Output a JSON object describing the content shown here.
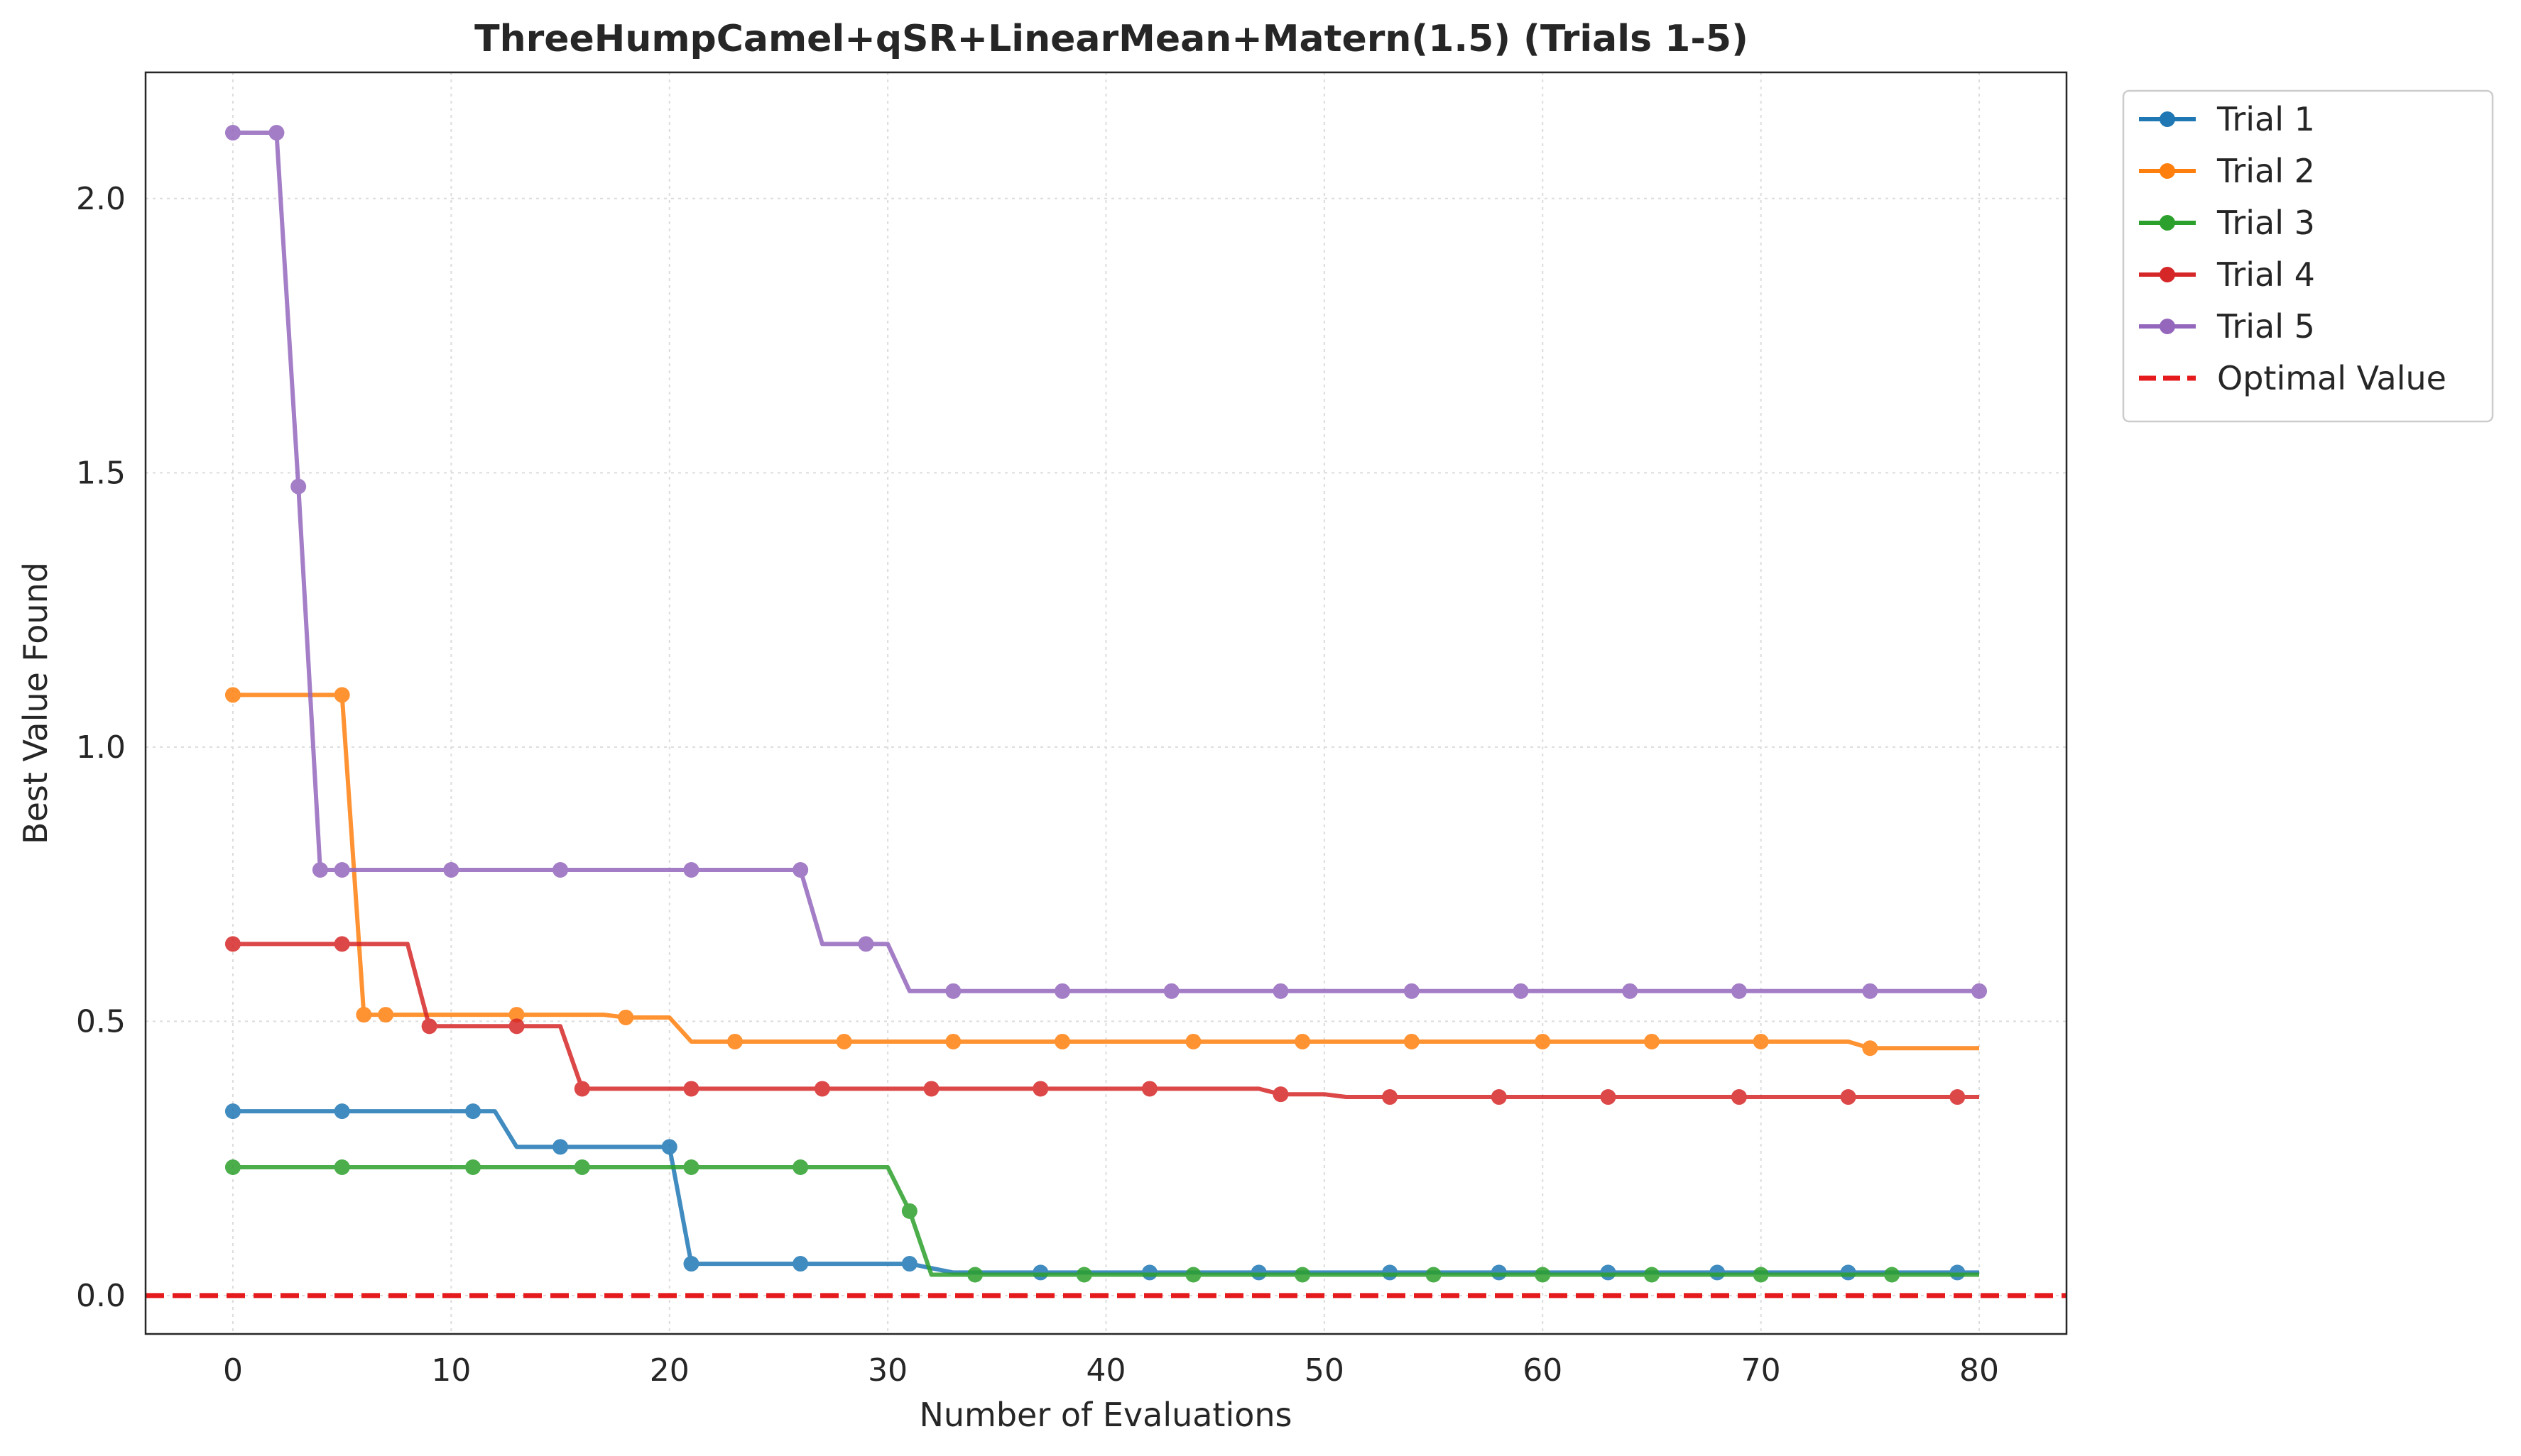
{
  "chart_data": {
    "type": "line",
    "title": "ThreeHumpCamel+qSR+LinearMean+Matern(1.5) (Trials 1-5)",
    "xlabel": "Number of Evaluations",
    "ylabel": "Best Value Found",
    "xlim": [
      -4,
      84
    ],
    "ylim": [
      -0.07,
      2.23
    ],
    "xticks": [
      0,
      10,
      20,
      30,
      40,
      50,
      60,
      70,
      80
    ],
    "yticks": [
      0.0,
      0.5,
      1.0,
      1.5,
      2.0
    ],
    "xtick_labels": [
      "0",
      "10",
      "20",
      "30",
      "40",
      "50",
      "60",
      "70",
      "80"
    ],
    "ytick_labels": [
      "0.0",
      "0.5",
      "1.0",
      "1.5",
      "2.0"
    ],
    "grid": true,
    "legend_position": "outside-top-right",
    "reference_line": {
      "name": "Optimal Value",
      "y": 0.0,
      "color": "#e41a1c",
      "style": "dashed"
    },
    "series": [
      {
        "name": "Trial 1",
        "color": "#1f77b4",
        "line": [
          [
            0,
            0.336
          ],
          [
            12,
            0.336
          ],
          [
            13,
            0.271
          ],
          [
            20,
            0.271
          ],
          [
            21,
            0.058
          ],
          [
            31,
            0.058
          ],
          [
            33,
            0.042
          ],
          [
            80,
            0.042
          ]
        ],
        "markers": [
          [
            0,
            0.336
          ],
          [
            5,
            0.336
          ],
          [
            11,
            0.336
          ],
          [
            15,
            0.271
          ],
          [
            20,
            0.271
          ],
          [
            21,
            0.058
          ],
          [
            26,
            0.058
          ],
          [
            31,
            0.058
          ],
          [
            37,
            0.042
          ],
          [
            42,
            0.042
          ],
          [
            47,
            0.042
          ],
          [
            53,
            0.042
          ],
          [
            58,
            0.042
          ],
          [
            63,
            0.042
          ],
          [
            68,
            0.042
          ],
          [
            74,
            0.042
          ],
          [
            79,
            0.042
          ]
        ]
      },
      {
        "name": "Trial 2",
        "color": "#ff7f0e",
        "line": [
          [
            0,
            1.095
          ],
          [
            5,
            1.095
          ],
          [
            6,
            0.512
          ],
          [
            17,
            0.512
          ],
          [
            18,
            0.507
          ],
          [
            20,
            0.507
          ],
          [
            21,
            0.463
          ],
          [
            74,
            0.463
          ],
          [
            75,
            0.451
          ],
          [
            80,
            0.451
          ]
        ],
        "markers": [
          [
            0,
            1.095
          ],
          [
            5,
            1.095
          ],
          [
            6,
            0.512
          ],
          [
            7,
            0.512
          ],
          [
            13,
            0.512
          ],
          [
            18,
            0.507
          ],
          [
            23,
            0.463
          ],
          [
            28,
            0.463
          ],
          [
            33,
            0.463
          ],
          [
            38,
            0.463
          ],
          [
            44,
            0.463
          ],
          [
            49,
            0.463
          ],
          [
            54,
            0.463
          ],
          [
            60,
            0.463
          ],
          [
            65,
            0.463
          ],
          [
            70,
            0.463
          ],
          [
            75,
            0.451
          ]
        ]
      },
      {
        "name": "Trial 3",
        "color": "#2ca02c",
        "line": [
          [
            0,
            0.234
          ],
          [
            30,
            0.234
          ],
          [
            31,
            0.154
          ],
          [
            32,
            0.038
          ],
          [
            80,
            0.038
          ]
        ],
        "markers": [
          [
            0,
            0.234
          ],
          [
            5,
            0.234
          ],
          [
            11,
            0.234
          ],
          [
            16,
            0.234
          ],
          [
            21,
            0.234
          ],
          [
            26,
            0.234
          ],
          [
            31,
            0.154
          ],
          [
            34,
            0.038
          ],
          [
            39,
            0.038
          ],
          [
            44,
            0.038
          ],
          [
            49,
            0.038
          ],
          [
            55,
            0.038
          ],
          [
            60,
            0.038
          ],
          [
            65,
            0.038
          ],
          [
            70,
            0.038
          ],
          [
            76,
            0.038
          ]
        ]
      },
      {
        "name": "Trial 4",
        "color": "#d62728",
        "line": [
          [
            0,
            0.641
          ],
          [
            8,
            0.641
          ],
          [
            9,
            0.491
          ],
          [
            15,
            0.491
          ],
          [
            16,
            0.377
          ],
          [
            47,
            0.377
          ],
          [
            48,
            0.367
          ],
          [
            50,
            0.367
          ],
          [
            51,
            0.362
          ],
          [
            80,
            0.362
          ]
        ],
        "markers": [
          [
            0,
            0.641
          ],
          [
            5,
            0.641
          ],
          [
            9,
            0.491
          ],
          [
            13,
            0.491
          ],
          [
            16,
            0.377
          ],
          [
            21,
            0.377
          ],
          [
            27,
            0.377
          ],
          [
            32,
            0.377
          ],
          [
            37,
            0.377
          ],
          [
            42,
            0.377
          ],
          [
            48,
            0.367
          ],
          [
            53,
            0.362
          ],
          [
            58,
            0.362
          ],
          [
            63,
            0.362
          ],
          [
            69,
            0.362
          ],
          [
            74,
            0.362
          ],
          [
            79,
            0.362
          ]
        ]
      },
      {
        "name": "Trial 5",
        "color": "#9467bd",
        "line": [
          [
            0,
            2.12
          ],
          [
            2,
            2.12
          ],
          [
            3,
            1.475
          ],
          [
            4,
            0.776
          ],
          [
            26,
            0.776
          ],
          [
            27,
            0.641
          ],
          [
            30,
            0.641
          ],
          [
            31,
            0.555
          ],
          [
            80,
            0.555
          ]
        ],
        "markers": [
          [
            0,
            2.12
          ],
          [
            2,
            2.12
          ],
          [
            3,
            1.475
          ],
          [
            4,
            0.776
          ],
          [
            5,
            0.776
          ],
          [
            10,
            0.776
          ],
          [
            15,
            0.776
          ],
          [
            21,
            0.776
          ],
          [
            26,
            0.776
          ],
          [
            29,
            0.641
          ],
          [
            33,
            0.555
          ],
          [
            38,
            0.555
          ],
          [
            43,
            0.555
          ],
          [
            48,
            0.555
          ],
          [
            54,
            0.555
          ],
          [
            59,
            0.555
          ],
          [
            64,
            0.555
          ],
          [
            69,
            0.555
          ],
          [
            75,
            0.555
          ],
          [
            80,
            0.555
          ]
        ]
      }
    ]
  }
}
